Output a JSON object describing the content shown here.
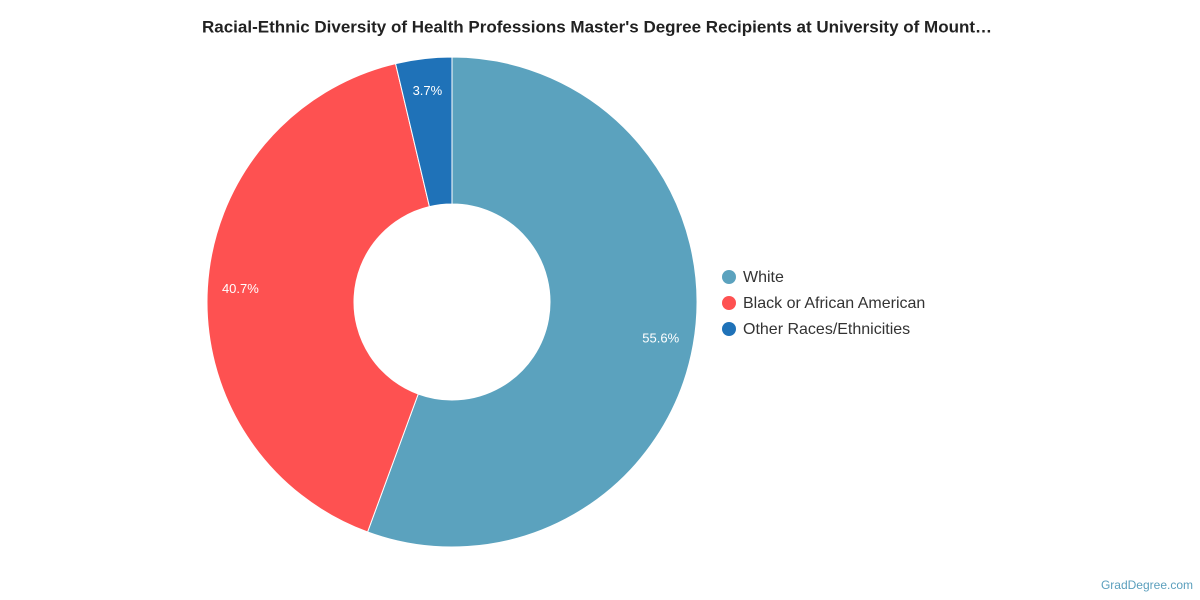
{
  "chart_data": {
    "type": "pie",
    "title": "Racial-Ethnic Diversity of Health Professions Master's Degree Recipients at University of Mount…",
    "categories": [
      "White",
      "Black or African American",
      "Other Races/Ethnicities"
    ],
    "values": [
      55.6,
      40.7,
      3.7
    ],
    "value_labels": [
      "55.6%",
      "40.7%",
      "3.7%"
    ],
    "colors": [
      "#5ba2be",
      "#fe5151",
      "#1f72b8"
    ],
    "source": "GradDegree.com"
  }
}
